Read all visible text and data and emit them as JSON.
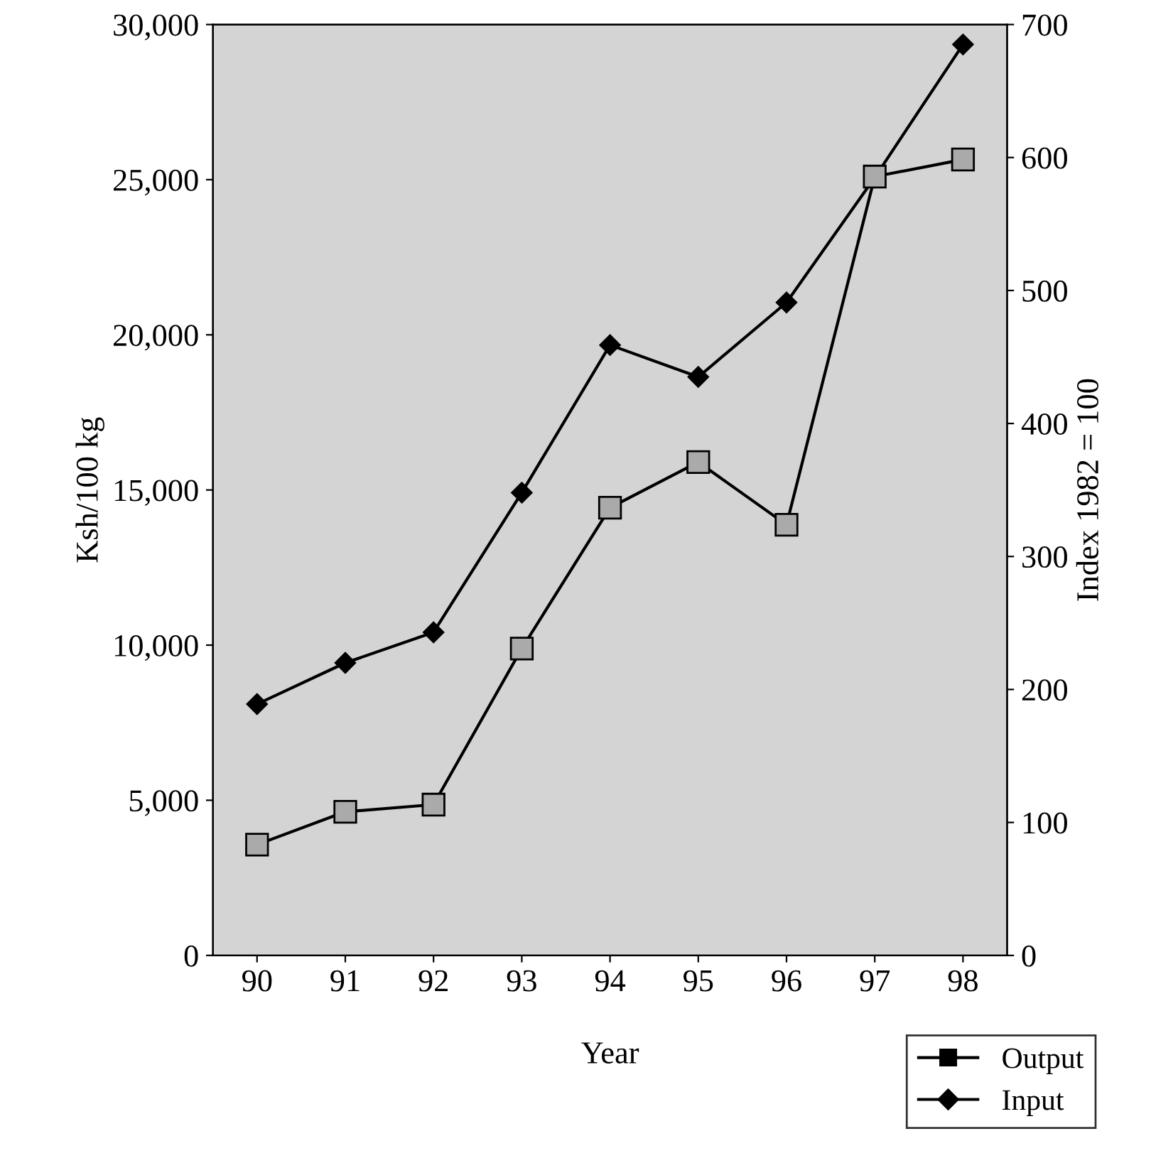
{
  "chart_data": {
    "type": "line",
    "categories": [
      "90",
      "91",
      "92",
      "93",
      "94",
      "95",
      "96",
      "97",
      "98"
    ],
    "xlabel": "Year",
    "ylabel": "Ksh/100 kg",
    "y2label": "Index 1982 = 100",
    "series": [
      {
        "name": "Output",
        "color": "#000000",
        "marker": "square",
        "values": [
          3570,
          4630,
          4860,
          9890,
          14430,
          15900,
          13880,
          25100,
          25650
        ]
      },
      {
        "name": "Input",
        "color": "#000000",
        "marker": "diamond",
        "axis": "y2",
        "values": [
          189,
          220,
          243,
          348,
          459,
          435,
          491,
          585,
          685
        ]
      }
    ],
    "ylim": [
      0,
      30000
    ],
    "yticks": [
      {
        "value": 0,
        "label": "0"
      },
      {
        "value": 5000,
        "label": "5,000"
      },
      {
        "value": 10000,
        "label": "10,000"
      },
      {
        "value": 15000,
        "label": "15,000"
      },
      {
        "value": 20000,
        "label": "20,000"
      },
      {
        "value": 25000,
        "label": "25,000"
      },
      {
        "value": 30000,
        "label": "30,000"
      }
    ],
    "y2lim": [
      0,
      700
    ],
    "y2ticks": [
      0,
      100,
      200,
      300,
      400,
      500,
      600,
      700
    ],
    "legend": "bottom right",
    "grid": false,
    "line_style": "solid"
  }
}
